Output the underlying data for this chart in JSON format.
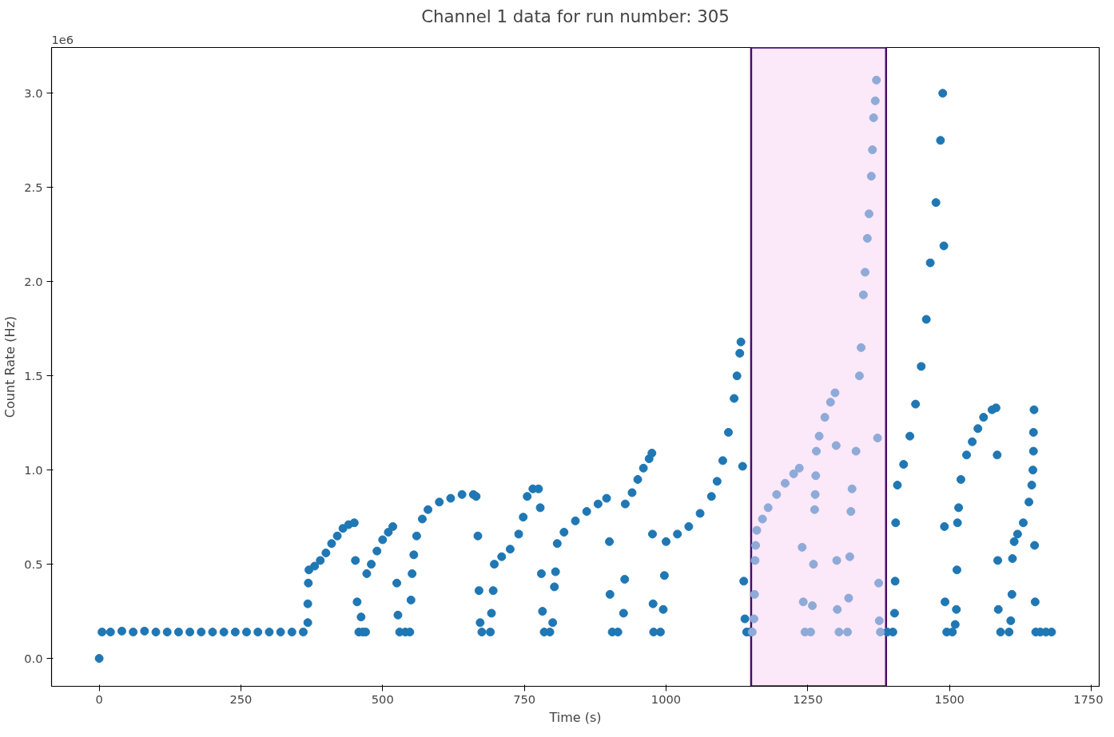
{
  "chart_data": {
    "type": "scatter",
    "title": "Channel 1 data for run number: 305",
    "xlabel": "Time (s)",
    "ylabel": "Count Rate (Hz)",
    "annotations": [
      "1e6"
    ],
    "xlim": [
      -84,
      1764
    ],
    "ylim": [
      -0.148,
      3.243
    ],
    "xticks": [
      0,
      250,
      500,
      750,
      1000,
      1250,
      1500,
      1750
    ],
    "yticks": [
      {
        "value": 0,
        "label": "0.0"
      },
      {
        "value": 0.5,
        "label": "0.5"
      },
      {
        "value": 1,
        "label": "1.0"
      },
      {
        "value": 1.5,
        "label": "1.5"
      },
      {
        "value": 2,
        "label": "2.0"
      },
      {
        "value": 2.5,
        "label": "2.5"
      },
      {
        "value": 3,
        "label": "3.0"
      }
    ],
    "grid": false,
    "marker": "circle",
    "bands": [
      {
        "axis": "x",
        "from": 1150,
        "to": 1388,
        "color": "#fbe8f8"
      }
    ],
    "series": [
      {
        "color": "#1f77b4",
        "x": [
          0,
          5,
          20,
          40,
          60,
          80,
          100,
          120,
          140,
          160,
          180,
          200,
          220,
          240,
          260,
          280,
          300,
          320,
          340,
          360,
          368,
          368,
          369,
          370,
          380,
          390,
          400,
          410,
          420,
          430,
          440,
          450,
          452,
          455,
          458,
          462,
          465,
          470,
          472,
          480,
          490,
          500,
          510,
          518,
          525,
          527,
          530,
          540,
          548,
          550,
          552,
          555,
          560,
          570,
          580,
          600,
          620,
          640,
          660,
          665,
          668,
          670,
          672,
          675,
          690,
          692,
          695,
          697,
          710,
          725,
          740,
          748,
          755,
          765,
          775,
          778,
          780,
          782,
          785,
          795,
          800,
          803,
          805,
          808,
          820,
          840,
          860,
          880,
          895,
          900,
          901,
          905,
          915,
          925,
          927,
          928,
          940,
          950,
          960,
          970,
          975,
          976,
          977,
          978,
          990,
          995,
          997,
          1000,
          1020,
          1040,
          1060,
          1080,
          1090,
          1100,
          1110,
          1120,
          1125,
          1130,
          1132,
          1135,
          1137,
          1139,
          1142,
          1148,
          1390,
          1400,
          1403,
          1404,
          1405,
          1408,
          1419,
          1430,
          1440,
          1450,
          1459,
          1466,
          1476,
          1484,
          1488,
          1490,
          1491,
          1492,
          1495,
          1505,
          1510,
          1512,
          1513,
          1514,
          1516,
          1520,
          1530,
          1540,
          1550,
          1560,
          1575,
          1582,
          1584,
          1585,
          1586,
          1590,
          1605,
          1608,
          1610,
          1611,
          1614,
          1620,
          1630,
          1640,
          1645,
          1647,
          1648,
          1648,
          1649,
          1650,
          1651,
          1652,
          1660,
          1670,
          1680
        ],
        "values": [
          0.0,
          0.14,
          0.14,
          0.145,
          0.14,
          0.145,
          0.14,
          0.14,
          0.14,
          0.14,
          0.14,
          0.14,
          0.14,
          0.14,
          0.14,
          0.14,
          0.14,
          0.14,
          0.14,
          0.14,
          0.19,
          0.29,
          0.4,
          0.47,
          0.49,
          0.52,
          0.56,
          0.61,
          0.65,
          0.69,
          0.71,
          0.72,
          0.52,
          0.3,
          0.14,
          0.22,
          0.14,
          0.14,
          0.45,
          0.5,
          0.57,
          0.63,
          0.67,
          0.7,
          0.4,
          0.23,
          0.14,
          0.14,
          0.14,
          0.31,
          0.45,
          0.55,
          0.65,
          0.74,
          0.79,
          0.83,
          0.85,
          0.87,
          0.87,
          0.86,
          0.65,
          0.36,
          0.19,
          0.14,
          0.14,
          0.24,
          0.36,
          0.5,
          0.54,
          0.58,
          0.66,
          0.75,
          0.86,
          0.9,
          0.9,
          0.8,
          0.45,
          0.25,
          0.14,
          0.14,
          0.19,
          0.38,
          0.46,
          0.61,
          0.67,
          0.73,
          0.78,
          0.82,
          0.85,
          0.62,
          0.34,
          0.14,
          0.14,
          0.24,
          0.42,
          0.82,
          0.88,
          0.95,
          1.01,
          1.06,
          1.09,
          0.66,
          0.29,
          0.14,
          0.14,
          0.26,
          0.44,
          0.62,
          0.66,
          0.7,
          0.77,
          0.86,
          0.94,
          1.05,
          1.2,
          1.38,
          1.5,
          1.62,
          1.68,
          1.02,
          0.41,
          0.21,
          0.14,
          0.14,
          0.14,
          0.14,
          0.24,
          0.41,
          0.72,
          0.92,
          1.03,
          1.18,
          1.35,
          1.55,
          1.8,
          2.1,
          2.42,
          2.75,
          3.0,
          2.19,
          0.7,
          0.3,
          0.14,
          0.14,
          0.18,
          0.26,
          0.47,
          0.72,
          0.8,
          0.95,
          1.08,
          1.15,
          1.22,
          1.28,
          1.32,
          1.33,
          1.08,
          0.52,
          0.26,
          0.14,
          0.14,
          0.2,
          0.34,
          0.53,
          0.62,
          0.66,
          0.72,
          0.83,
          0.92,
          1.0,
          1.1,
          1.2,
          1.32,
          0.6,
          0.3,
          0.14,
          0.14,
          0.14,
          0.14
        ]
      },
      {
        "color": "#8eaad8",
        "x": [
          1152,
          1155,
          1156,
          1157,
          1158,
          1160,
          1170,
          1180,
          1195,
          1210,
          1225,
          1235,
          1240,
          1242,
          1245,
          1255,
          1258,
          1260,
          1262,
          1263,
          1264,
          1265,
          1270,
          1280,
          1290,
          1298,
          1300,
          1301,
          1302,
          1305,
          1320,
          1322,
          1324,
          1326,
          1328,
          1335,
          1341,
          1344,
          1348,
          1351,
          1355,
          1358,
          1362,
          1364,
          1366,
          1369,
          1371,
          1373,
          1375,
          1376,
          1378
        ],
        "values": [
          0.14,
          0.21,
          0.34,
          0.52,
          0.6,
          0.68,
          0.74,
          0.8,
          0.87,
          0.93,
          0.98,
          1.01,
          0.59,
          0.3,
          0.14,
          0.14,
          0.28,
          0.5,
          0.79,
          0.87,
          0.97,
          1.1,
          1.18,
          1.28,
          1.36,
          1.41,
          1.13,
          0.52,
          0.26,
          0.14,
          0.14,
          0.32,
          0.54,
          0.78,
          0.9,
          1.1,
          1.5,
          1.65,
          1.93,
          2.05,
          2.23,
          2.36,
          2.56,
          2.7,
          2.87,
          2.96,
          3.07,
          1.17,
          0.4,
          0.2,
          0.14
        ]
      }
    ]
  }
}
